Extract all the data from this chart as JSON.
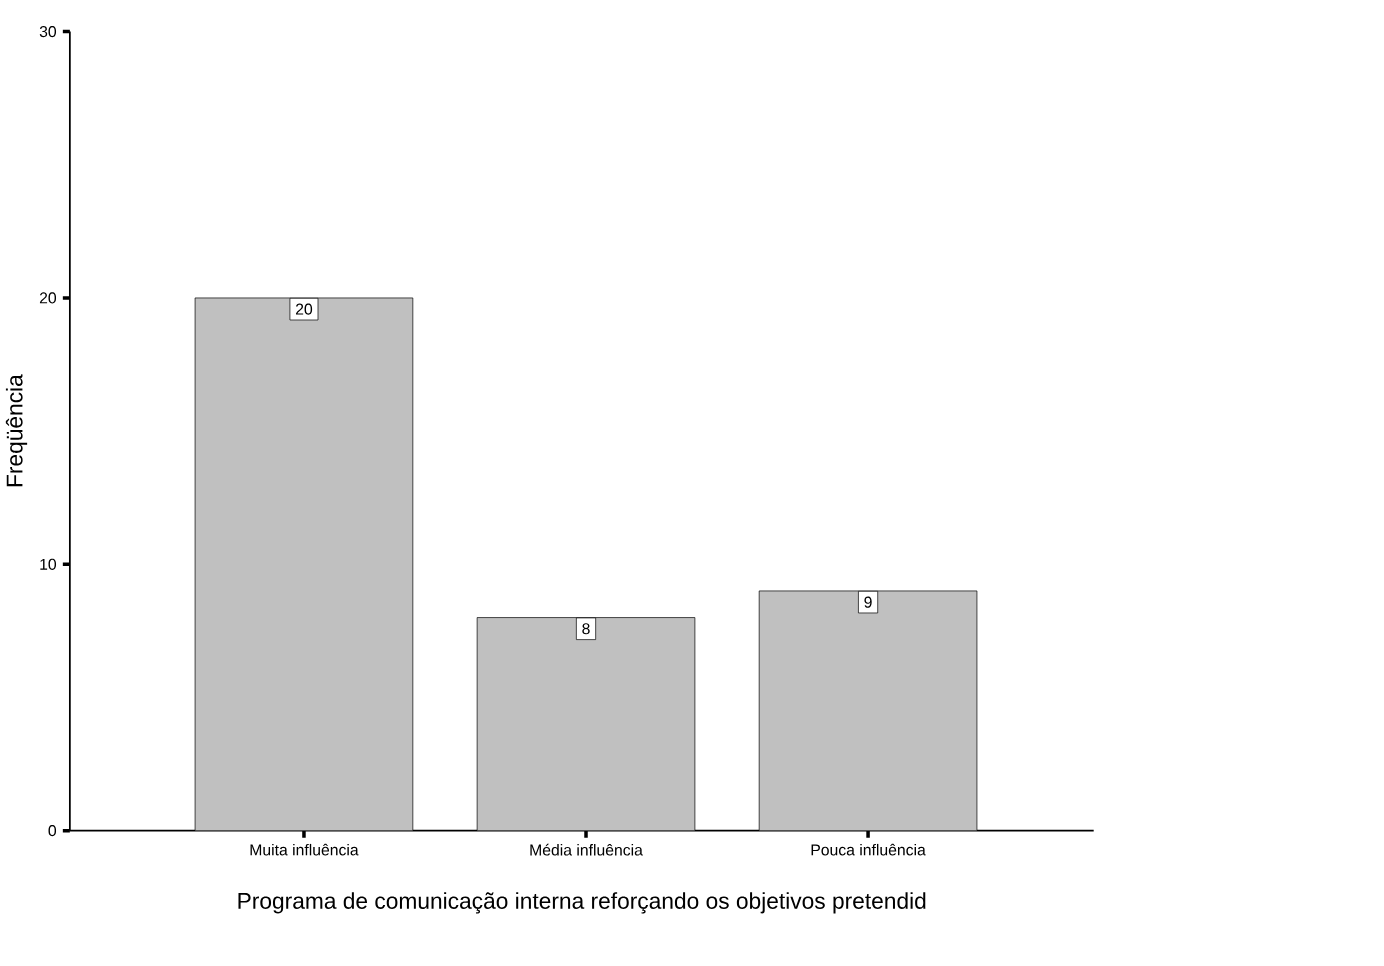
{
  "chart_data": {
    "type": "bar",
    "xlabel": "Programa de comunicação interna reforçando os objetivos pretendid",
    "ylabel": "Freqüência",
    "categories": [
      "Muita influência",
      "Média influência",
      "Pouca influência"
    ],
    "values": [
      20,
      8,
      9
    ],
    "color": "#c0c0c0",
    "ylim": [
      0,
      30
    ],
    "yticks": [
      0,
      10,
      20,
      30
    ],
    "data_labels": true,
    "grid": false
  }
}
